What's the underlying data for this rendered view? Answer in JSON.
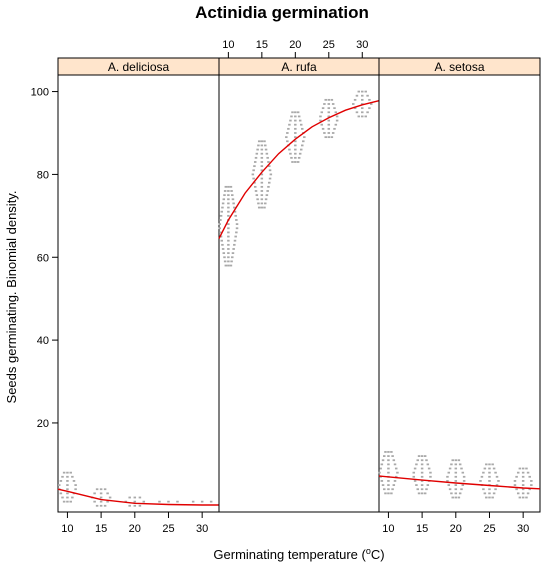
{
  "chart_data": {
    "type": "scatter",
    "title": "Actinidia germination",
    "xlabel": "Germinating temperature (",
    "xlabel_unit_sup": "o",
    "xlabel_suffix": "C)",
    "ylabel": "Seeds germinating. Binomial density.",
    "xlim": [
      8.6,
      32.5
    ],
    "ylim": [
      -1.5,
      104
    ],
    "x_ticks": [
      10,
      15,
      20,
      25,
      30
    ],
    "y_ticks": [
      20,
      40,
      60,
      80,
      100
    ],
    "strip_color": "#ffe5cc",
    "point_color": "#a9a9a9",
    "line_color": "#e00000",
    "panels": [
      {
        "name": "A. deliciosa",
        "points": [
          {
            "x": 10,
            "ymin": 1,
            "ymax": 8
          },
          {
            "x": 15,
            "ymin": 0,
            "ymax": 4
          },
          {
            "x": 20,
            "ymin": 0,
            "ymax": 2
          },
          {
            "x": 25,
            "ymin": 1,
            "ymax": 1
          },
          {
            "x": 30,
            "ymin": 1,
            "ymax": 1
          }
        ],
        "curve": [
          [
            8.6,
            4.0
          ],
          [
            10,
            3.5
          ],
          [
            15,
            1.5
          ],
          [
            20,
            0.6
          ],
          [
            25,
            0.3
          ],
          [
            30,
            0.2
          ],
          [
            32.5,
            0.2
          ]
        ]
      },
      {
        "name": "A. rufa",
        "points": [
          {
            "x": 10,
            "ymin": 58,
            "ymax": 77
          },
          {
            "x": 15,
            "ymin": 72,
            "ymax": 88
          },
          {
            "x": 20,
            "ymin": 83,
            "ymax": 95
          },
          {
            "x": 25,
            "ymin": 89,
            "ymax": 98
          },
          {
            "x": 30,
            "ymin": 94,
            "ymax": 100
          }
        ],
        "curve": [
          [
            8.6,
            64.5
          ],
          [
            10,
            69
          ],
          [
            12.5,
            75.5
          ],
          [
            15,
            80.5
          ],
          [
            17.5,
            85
          ],
          [
            20,
            88.5
          ],
          [
            22.5,
            91.5
          ],
          [
            25,
            93.7
          ],
          [
            27.5,
            95.5
          ],
          [
            30,
            96.8
          ],
          [
            32.5,
            97.8
          ]
        ]
      },
      {
        "name": "A. setosa",
        "points": [
          {
            "x": 10,
            "ymin": 3,
            "ymax": 13
          },
          {
            "x": 15,
            "ymin": 3,
            "ymax": 12
          },
          {
            "x": 20,
            "ymin": 2,
            "ymax": 11
          },
          {
            "x": 25,
            "ymin": 2,
            "ymax": 10
          },
          {
            "x": 30,
            "ymin": 2,
            "ymax": 9
          }
        ],
        "curve": [
          [
            8.6,
            7.2
          ],
          [
            15,
            6.2
          ],
          [
            20,
            5.5
          ],
          [
            25,
            4.9
          ],
          [
            30,
            4.3
          ],
          [
            32.5,
            4.1
          ]
        ]
      }
    ]
  }
}
